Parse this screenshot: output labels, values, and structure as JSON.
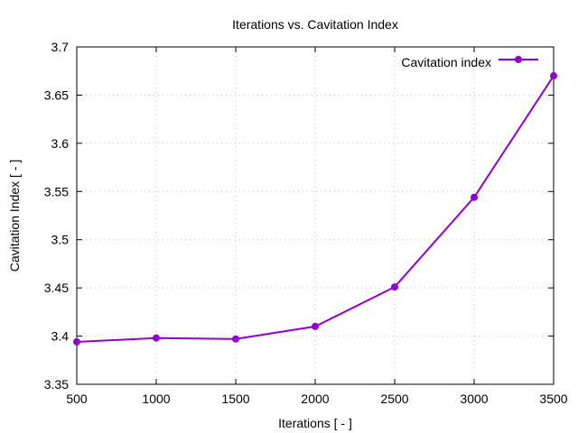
{
  "chart_data": {
    "type": "line",
    "title": "Iterations  vs. Cavitation Index",
    "xlabel": "Iterations [ - ]",
    "ylabel": "Cavitation Index [ - ]",
    "xlim": [
      500,
      3500
    ],
    "ylim": [
      3.35,
      3.7
    ],
    "xticks": [
      "500",
      "1000",
      "1500",
      "2000",
      "2500",
      "3000",
      "3500"
    ],
    "yticks": [
      "3.35",
      "3.4",
      "3.45",
      "3.5",
      "3.55",
      "3.6",
      "3.65",
      "3.7"
    ],
    "grid": true,
    "legend_position": "top-right",
    "series": [
      {
        "name": "Cavitation index",
        "color": "#9400d3",
        "x": [
          500,
          1000,
          1500,
          2000,
          2500,
          3000,
          3500
        ],
        "values": [
          3.394,
          3.398,
          3.397,
          3.41,
          3.451,
          3.544,
          3.67
        ]
      }
    ]
  }
}
